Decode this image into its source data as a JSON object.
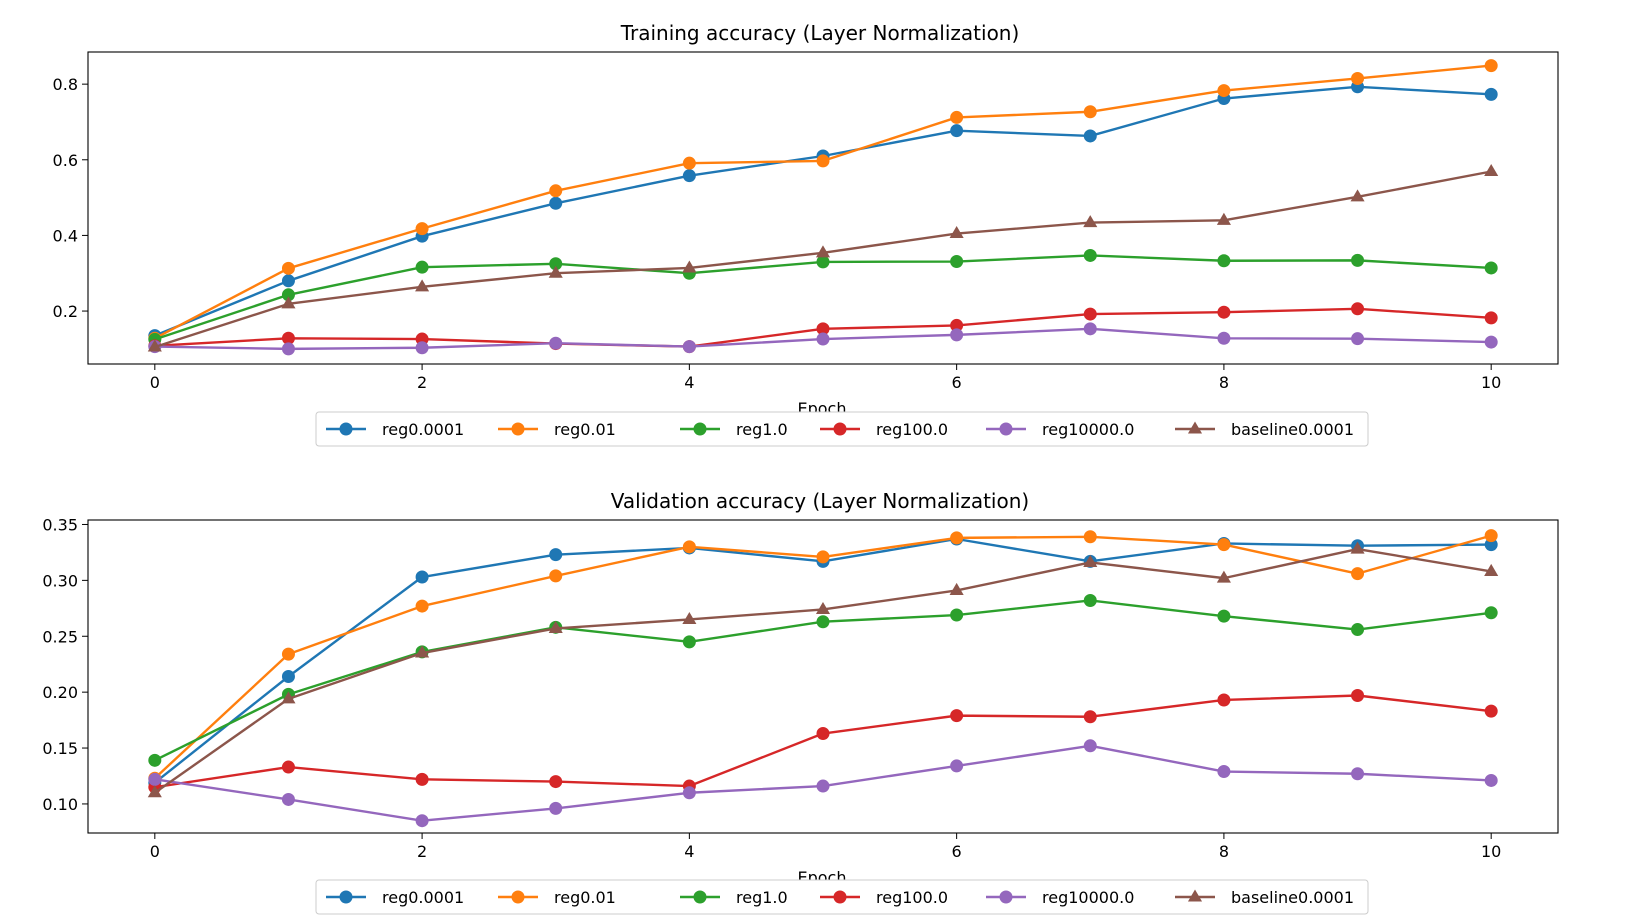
{
  "chart_data": [
    {
      "type": "line",
      "title": "Training accuracy (Layer Normalization)",
      "xlabel": "Epoch",
      "ylabel": "",
      "x": [
        0,
        1,
        2,
        3,
        4,
        5,
        6,
        7,
        8,
        9,
        10
      ],
      "xlim": [
        -0.5,
        10.5
      ],
      "ylim": [
        0.06,
        0.885
      ],
      "xticks": [
        0,
        2,
        4,
        6,
        8,
        10
      ],
      "xtick_labels": [
        "0",
        "2",
        "4",
        "6",
        "8",
        "10"
      ],
      "yticks": [
        0.2,
        0.4,
        0.6,
        0.8
      ],
      "ytick_labels": [
        "0.2",
        "0.4",
        "0.6",
        "0.8"
      ],
      "legend_position": "below",
      "series": [
        {
          "name": "reg0.0001",
          "color": "#1f77b4",
          "marker": "circle",
          "values": [
            0.135,
            0.28,
            0.398,
            0.485,
            0.558,
            0.61,
            0.677,
            0.663,
            0.762,
            0.793,
            0.773
          ]
        },
        {
          "name": "reg0.01",
          "color": "#ff7f0e",
          "marker": "circle",
          "values": [
            0.128,
            0.313,
            0.418,
            0.518,
            0.591,
            0.597,
            0.712,
            0.727,
            0.783,
            0.815,
            0.849
          ]
        },
        {
          "name": "reg1.0",
          "color": "#2ca02c",
          "marker": "circle",
          "values": [
            0.125,
            0.243,
            0.316,
            0.325,
            0.3,
            0.33,
            0.331,
            0.347,
            0.333,
            0.334,
            0.314
          ]
        },
        {
          "name": "reg100.0",
          "color": "#d62728",
          "marker": "circle",
          "values": [
            0.108,
            0.128,
            0.126,
            0.114,
            0.106,
            0.153,
            0.162,
            0.192,
            0.197,
            0.206,
            0.182
          ]
        },
        {
          "name": "reg10000.0",
          "color": "#9467bd",
          "marker": "circle",
          "values": [
            0.106,
            0.1,
            0.103,
            0.115,
            0.106,
            0.126,
            0.137,
            0.153,
            0.128,
            0.127,
            0.118
          ]
        },
        {
          "name": "baseline0.0001",
          "color": "#8c564b",
          "marker": "triangle",
          "values": [
            0.105,
            0.219,
            0.264,
            0.3,
            0.314,
            0.354,
            0.405,
            0.434,
            0.44,
            0.502,
            0.569
          ]
        }
      ]
    },
    {
      "type": "line",
      "title": "Validation accuracy (Layer Normalization)",
      "xlabel": "Epoch",
      "ylabel": "",
      "x": [
        0,
        1,
        2,
        3,
        4,
        5,
        6,
        7,
        8,
        9,
        10
      ],
      "xlim": [
        -0.5,
        10.5
      ],
      "ylim": [
        0.074,
        0.354
      ],
      "xticks": [
        0,
        2,
        4,
        6,
        8,
        10
      ],
      "xtick_labels": [
        "0",
        "2",
        "4",
        "6",
        "8",
        "10"
      ],
      "yticks": [
        0.1,
        0.15,
        0.2,
        0.25,
        0.3,
        0.35
      ],
      "ytick_labels": [
        "0.10",
        "0.15",
        "0.20",
        "0.25",
        "0.30",
        "0.35"
      ],
      "legend_position": "below",
      "series": [
        {
          "name": "reg0.0001",
          "color": "#1f77b4",
          "marker": "circle",
          "values": [
            0.119,
            0.214,
            0.303,
            0.323,
            0.329,
            0.317,
            0.337,
            0.317,
            0.333,
            0.331,
            0.332
          ]
        },
        {
          "name": "reg0.01",
          "color": "#ff7f0e",
          "marker": "circle",
          "values": [
            0.123,
            0.234,
            0.277,
            0.304,
            0.33,
            0.321,
            0.338,
            0.339,
            0.332,
            0.306,
            0.34
          ]
        },
        {
          "name": "reg1.0",
          "color": "#2ca02c",
          "marker": "circle",
          "values": [
            0.139,
            0.198,
            0.236,
            0.258,
            0.245,
            0.263,
            0.269,
            0.282,
            0.268,
            0.256,
            0.271
          ]
        },
        {
          "name": "reg100.0",
          "color": "#d62728",
          "marker": "circle",
          "values": [
            0.115,
            0.133,
            0.122,
            0.12,
            0.116,
            0.163,
            0.179,
            0.178,
            0.193,
            0.197,
            0.183
          ]
        },
        {
          "name": "reg10000.0",
          "color": "#9467bd",
          "marker": "circle",
          "values": [
            0.122,
            0.104,
            0.085,
            0.096,
            0.11,
            0.116,
            0.134,
            0.152,
            0.129,
            0.127,
            0.121
          ]
        },
        {
          "name": "baseline0.0001",
          "color": "#8c564b",
          "marker": "triangle",
          "values": [
            0.11,
            0.194,
            0.235,
            0.257,
            0.265,
            0.274,
            0.291,
            0.316,
            0.302,
            0.328,
            0.308
          ]
        }
      ]
    }
  ]
}
